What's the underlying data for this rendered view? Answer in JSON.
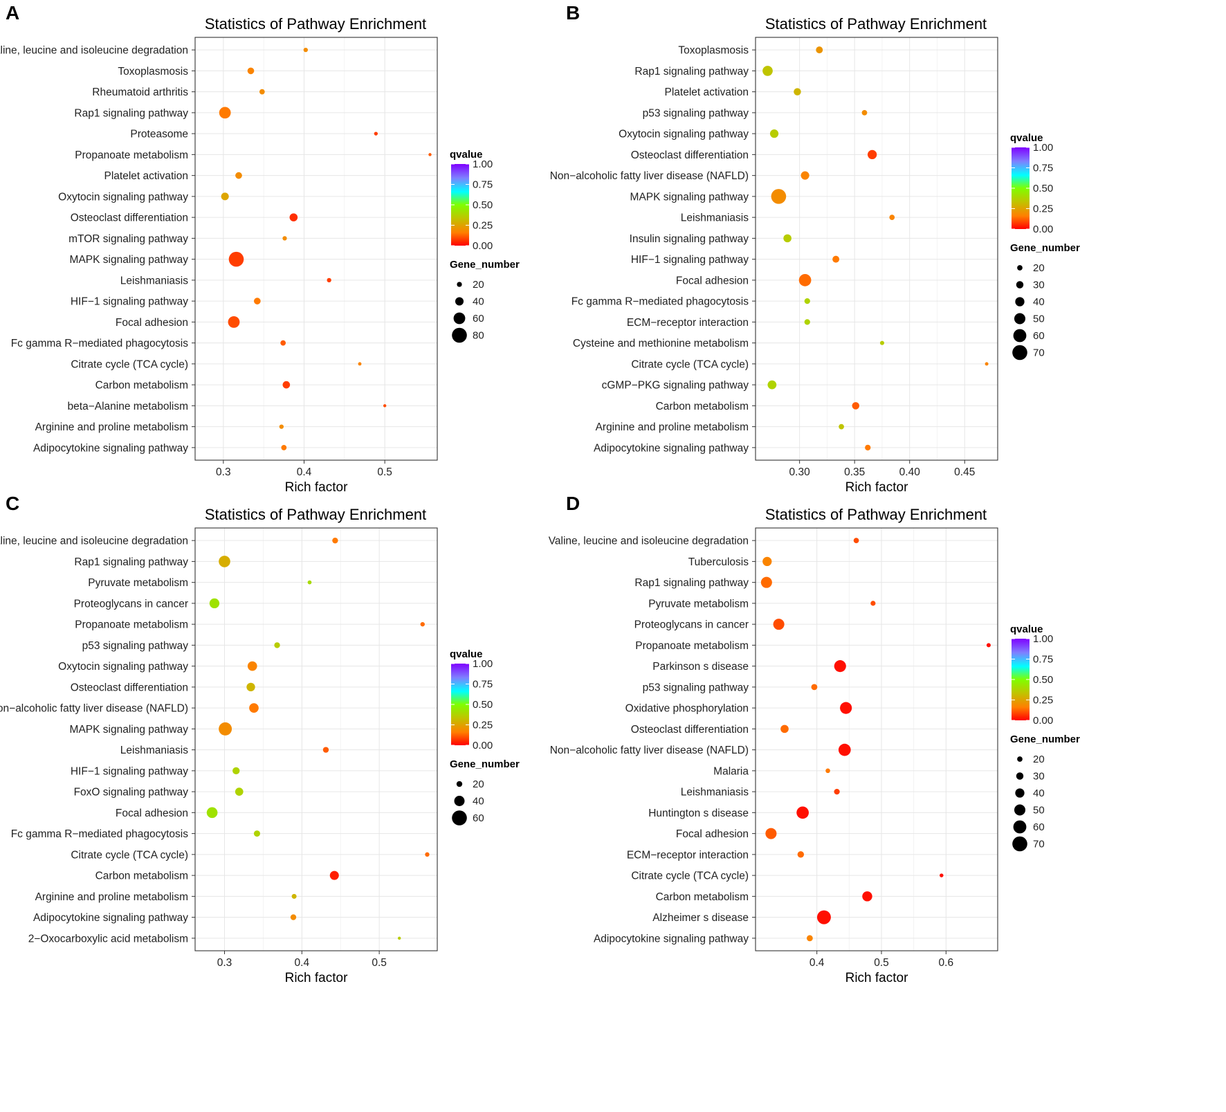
{
  "colors": {
    "gradient": [
      "#FF0000",
      "#FF7F00",
      "#C2C200",
      "#7FFF00",
      "#00FFFF",
      "#7F7FFF",
      "#7F00FF"
    ]
  },
  "chart_data": [
    {
      "type": "scatter",
      "panel": "A",
      "title": "Statistics of Pathway Enrichment",
      "xlabel": "Rich factor",
      "ylabel": "",
      "xlim": [
        0.265,
        0.565
      ],
      "xticks": [
        0.3,
        0.4,
        0.5
      ],
      "xtick_labels": [
        "0.3",
        "0.4",
        "0.5"
      ],
      "pathways": [
        "Valine, leucine and isoleucine degradation",
        "Toxoplasmosis",
        "Rheumatoid arthritis",
        "Rap1 signaling pathway",
        "Proteasome",
        "Propanoate metabolism",
        "Platelet activation",
        "Oxytocin signaling pathway",
        "Osteoclast differentiation",
        "mTOR signaling pathway",
        "MAPK signaling pathway",
        "Leishmaniasis",
        "HIF−1 signaling pathway",
        "Focal adhesion",
        "Fc gamma R−mediated phagocytosis",
        "Citrate cycle (TCA cycle)",
        "Carbon metabolism",
        "beta−Alanine metabolism",
        "Arginine and proline metabolism",
        "Adipocytokine signaling pathway"
      ],
      "rich_factor": [
        0.402,
        0.334,
        0.348,
        0.302,
        0.489,
        0.556,
        0.319,
        0.302,
        0.387,
        0.376,
        0.316,
        0.431,
        0.342,
        0.313,
        0.374,
        0.469,
        0.378,
        0.5,
        0.372,
        0.375
      ],
      "gene_number": [
        16,
        30,
        22,
        60,
        12,
        8,
        30,
        36,
        38,
        16,
        80,
        16,
        30,
        60,
        22,
        10,
        34,
        8,
        16,
        22
      ],
      "qvalue": [
        0.2,
        0.18,
        0.2,
        0.16,
        0.08,
        0.12,
        0.2,
        0.26,
        0.06,
        0.2,
        0.08,
        0.08,
        0.16,
        0.1,
        0.12,
        0.18,
        0.08,
        0.1,
        0.2,
        0.16
      ],
      "legend": {
        "color_title": "qvalue",
        "color_ticks": [
          1.0,
          0.75,
          0.5,
          0.25,
          0.0
        ],
        "color_tick_labels": [
          "1.00",
          "0.75",
          "0.50",
          "0.25",
          "0.00"
        ],
        "size_title": "Gene_number",
        "size_values": [
          20,
          40,
          60,
          80
        ],
        "size_labels": [
          "20",
          "40",
          "60",
          "80"
        ]
      }
    },
    {
      "type": "scatter",
      "panel": "B",
      "title": "Statistics of Pathway Enrichment",
      "xlabel": "Rich factor",
      "ylabel": "",
      "xlim": [
        0.26,
        0.48
      ],
      "xticks": [
        0.3,
        0.35,
        0.4,
        0.45
      ],
      "xtick_labels": [
        "0.30",
        "0.35",
        "0.40",
        "0.45"
      ],
      "pathways": [
        "Toxoplasmosis",
        "Rap1 signaling pathway",
        "Platelet activation",
        "p53 signaling pathway",
        "Oxytocin signaling pathway",
        "Osteoclast differentiation",
        "Non−alcoholic fatty liver disease (NAFLD)",
        "MAPK signaling pathway",
        "Leishmaniasis",
        "Insulin signaling pathway",
        "HIF−1 signaling pathway",
        "Focal adhesion",
        "Fc gamma R−mediated phagocytosis",
        "ECM−receptor interaction",
        "Cysteine and methionine metabolism",
        "Citrate cycle (TCA cycle)",
        "cGMP−PKG signaling pathway",
        "Carbon metabolism",
        "Arginine and proline metabolism",
        "Adipocytokine signaling pathway"
      ],
      "rich_factor": [
        0.318,
        0.271,
        0.298,
        0.359,
        0.277,
        0.366,
        0.305,
        0.281,
        0.384,
        0.289,
        0.333,
        0.305,
        0.307,
        0.307,
        0.375,
        0.47,
        0.275,
        0.351,
        0.338,
        0.362
      ],
      "gene_number": [
        28,
        45,
        30,
        20,
        36,
        40,
        36,
        70,
        20,
        34,
        28,
        56,
        22,
        22,
        14,
        10,
        38,
        30,
        20,
        22
      ],
      "qvalue": [
        0.22,
        0.34,
        0.3,
        0.2,
        0.36,
        0.08,
        0.18,
        0.2,
        0.18,
        0.36,
        0.16,
        0.14,
        0.38,
        0.38,
        0.36,
        0.18,
        0.38,
        0.12,
        0.34,
        0.16
      ],
      "legend": {
        "color_title": "qvalue",
        "color_ticks": [
          1.0,
          0.75,
          0.5,
          0.25,
          0.0
        ],
        "color_tick_labels": [
          "1.00",
          "0.75",
          "0.50",
          "0.25",
          "0.00"
        ],
        "size_title": "Gene_number",
        "size_values": [
          20,
          30,
          40,
          50,
          60,
          70
        ],
        "size_labels": [
          "20",
          "30",
          "40",
          "50",
          "60",
          "70"
        ]
      }
    },
    {
      "type": "scatter",
      "panel": "C",
      "title": "Statistics of Pathway Enrichment",
      "xlabel": "Rich factor",
      "ylabel": "",
      "xlim": [
        0.262,
        0.575
      ],
      "xticks": [
        0.3,
        0.4,
        0.5
      ],
      "xtick_labels": [
        "0.3",
        "0.4",
        "0.5"
      ],
      "pathways": [
        "Valine, leucine and isoleucine degradation",
        "Rap1 signaling pathway",
        "Pyruvate metabolism",
        "Proteoglycans in cancer",
        "Propanoate metabolism",
        "p53 signaling pathway",
        "Oxytocin signaling pathway",
        "Osteoclast differentiation",
        "Non−alcoholic fatty liver disease (NAFLD)",
        "MAPK signaling pathway",
        "Leishmaniasis",
        "HIF−1 signaling pathway",
        "FoxO signaling pathway",
        "Focal adhesion",
        "Fc gamma R−mediated phagocytosis",
        "Citrate cycle (TCA cycle)",
        "Carbon metabolism",
        "Arginine and proline metabolism",
        "Adipocytokine signaling pathway",
        "2−Oxocarboxylic acid metabolism"
      ],
      "rich_factor": [
        0.443,
        0.3,
        0.41,
        0.287,
        0.556,
        0.368,
        0.336,
        0.334,
        0.338,
        0.301,
        0.431,
        0.315,
        0.319,
        0.284,
        0.342,
        0.562,
        0.442,
        0.39,
        0.389,
        0.526
      ],
      "gene_number": [
        20,
        45,
        12,
        38,
        14,
        20,
        36,
        32,
        36,
        52,
        20,
        26,
        30,
        42,
        22,
        14,
        34,
        16,
        20,
        8
      ],
      "qvalue": [
        0.16,
        0.28,
        0.4,
        0.42,
        0.14,
        0.36,
        0.18,
        0.3,
        0.16,
        0.2,
        0.12,
        0.38,
        0.38,
        0.42,
        0.38,
        0.14,
        0.04,
        0.3,
        0.2,
        0.36
      ],
      "legend": {
        "color_title": "qvalue",
        "color_ticks": [
          1.0,
          0.75,
          0.5,
          0.25,
          0.0
        ],
        "color_tick_labels": [
          "1.00",
          "0.75",
          "0.50",
          "0.25",
          "0.00"
        ],
        "size_title": "Gene_number",
        "size_values": [
          20,
          40,
          60
        ],
        "size_labels": [
          "20",
          "40",
          "60"
        ]
      }
    },
    {
      "type": "scatter",
      "panel": "D",
      "title": "Statistics of Pathway Enrichment",
      "xlabel": "Rich factor",
      "ylabel": "",
      "xlim": [
        0.305,
        0.68
      ],
      "xticks": [
        0.4,
        0.5,
        0.6
      ],
      "xtick_labels": [
        "0.4",
        "0.5",
        "0.6"
      ],
      "pathways": [
        "Valine, leucine and isoleucine degradation",
        "Tuberculosis",
        "Rap1 signaling pathway",
        "Pyruvate metabolism",
        "Proteoglycans in cancer",
        "Propanoate metabolism",
        "Parkinson s disease",
        "p53 signaling pathway",
        "Oxidative phosphorylation",
        "Osteoclast differentiation",
        "Non−alcoholic fatty liver disease (NAFLD)",
        "Malaria",
        "Leishmaniasis",
        "Huntington s disease",
        "Focal adhesion",
        "ECM−receptor interaction",
        "Citrate cycle (TCA cycle)",
        "Carbon metabolism",
        "Alzheimer s disease",
        "Adipocytokine signaling pathway"
      ],
      "rich_factor": [
        0.461,
        0.323,
        0.322,
        0.487,
        0.341,
        0.666,
        0.436,
        0.396,
        0.445,
        0.35,
        0.443,
        0.417,
        0.431,
        0.378,
        0.329,
        0.375,
        0.593,
        0.478,
        0.411,
        0.389
      ],
      "gene_number": [
        20,
        40,
        50,
        18,
        50,
        14,
        54,
        24,
        54,
        34,
        56,
        16,
        22,
        56,
        50,
        26,
        12,
        44,
        64,
        24
      ],
      "qvalue": [
        0.1,
        0.18,
        0.14,
        0.1,
        0.1,
        0.02,
        0.02,
        0.14,
        0.02,
        0.14,
        0.02,
        0.16,
        0.08,
        0.02,
        0.12,
        0.14,
        0.02,
        0.02,
        0.02,
        0.18
      ],
      "legend": {
        "color_title": "qvalue",
        "color_ticks": [
          1.0,
          0.75,
          0.5,
          0.25,
          0.0
        ],
        "color_tick_labels": [
          "1.00",
          "0.75",
          "0.50",
          "0.25",
          "0.00"
        ],
        "size_title": "Gene_number",
        "size_values": [
          20,
          30,
          40,
          50,
          60,
          70
        ],
        "size_labels": [
          "20",
          "30",
          "40",
          "50",
          "60",
          "70"
        ]
      }
    }
  ]
}
